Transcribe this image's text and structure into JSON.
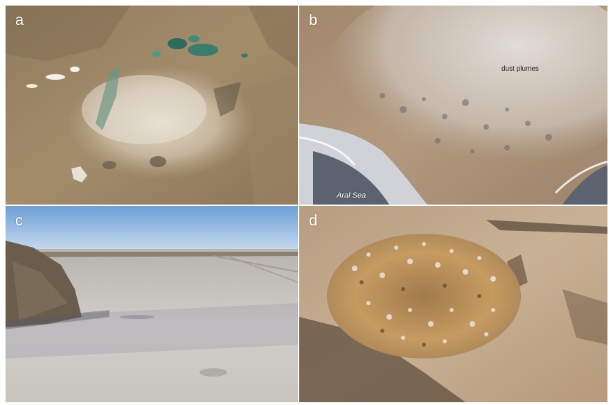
{
  "panels": [
    {
      "letter": "a"
    },
    {
      "letter": "b",
      "annotations": {
        "dust": "dust plumes",
        "sea": "Aral Sea"
      }
    },
    {
      "letter": "c"
    },
    {
      "letter": "d"
    }
  ]
}
